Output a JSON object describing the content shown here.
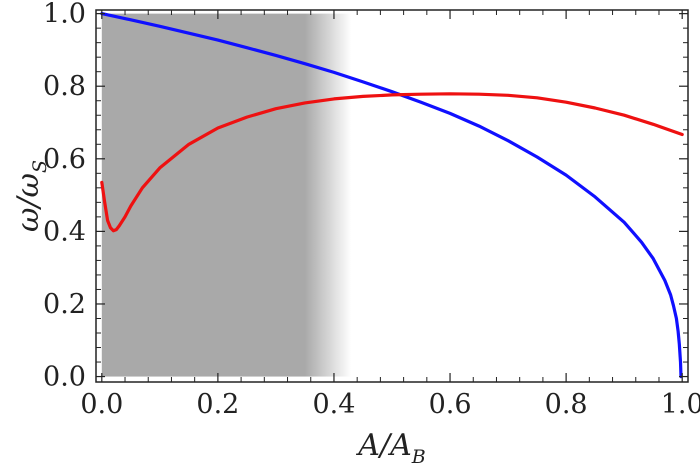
{
  "chart_data": {
    "type": "line",
    "xlabel": {
      "main": "A/A",
      "sub": "B"
    },
    "ylabel": {
      "main": "ω/ω",
      "sub": "S"
    },
    "xlim": [
      -0.01,
      1.01
    ],
    "ylim": [
      -0.015,
      1.01
    ],
    "xticks": [
      "0.0",
      "0.2",
      "0.4",
      "0.6",
      "0.8",
      "1.0"
    ],
    "yticks": [
      "0.0",
      "0.2",
      "0.4",
      "0.6",
      "0.8",
      "1.0"
    ],
    "shaded_region": {
      "x_solid_end": 0.35,
      "x_fade_end": 0.43,
      "color": "#a9a9a9"
    },
    "grid": false,
    "series": [
      {
        "color": "#1010ff",
        "points": [
          [
            0.0,
            1.0
          ],
          [
            0.05,
            0.983
          ],
          [
            0.1,
            0.965
          ],
          [
            0.15,
            0.946
          ],
          [
            0.2,
            0.927
          ],
          [
            0.25,
            0.906
          ],
          [
            0.3,
            0.885
          ],
          [
            0.35,
            0.862
          ],
          [
            0.4,
            0.838
          ],
          [
            0.45,
            0.812
          ],
          [
            0.5,
            0.785
          ],
          [
            0.55,
            0.756
          ],
          [
            0.6,
            0.725
          ],
          [
            0.65,
            0.69
          ],
          [
            0.7,
            0.65
          ],
          [
            0.75,
            0.605
          ],
          [
            0.8,
            0.555
          ],
          [
            0.85,
            0.495
          ],
          [
            0.9,
            0.425
          ],
          [
            0.93,
            0.37
          ],
          [
            0.95,
            0.325
          ],
          [
            0.97,
            0.265
          ],
          [
            0.98,
            0.225
          ],
          [
            0.985,
            0.195
          ],
          [
            0.99,
            0.16
          ],
          [
            0.993,
            0.125
          ],
          [
            0.995,
            0.09
          ],
          [
            0.997,
            0.04
          ],
          [
            0.998,
            0.0
          ]
        ]
      },
      {
        "color": "#ee1111",
        "points": [
          [
            0.0,
            0.535
          ],
          [
            0.005,
            0.48
          ],
          [
            0.01,
            0.43
          ],
          [
            0.015,
            0.41
          ],
          [
            0.02,
            0.402
          ],
          [
            0.025,
            0.405
          ],
          [
            0.03,
            0.415
          ],
          [
            0.04,
            0.44
          ],
          [
            0.05,
            0.47
          ],
          [
            0.07,
            0.52
          ],
          [
            0.1,
            0.575
          ],
          [
            0.15,
            0.64
          ],
          [
            0.2,
            0.685
          ],
          [
            0.25,
            0.715
          ],
          [
            0.3,
            0.738
          ],
          [
            0.35,
            0.754
          ],
          [
            0.4,
            0.765
          ],
          [
            0.45,
            0.772
          ],
          [
            0.5,
            0.776
          ],
          [
            0.55,
            0.778
          ],
          [
            0.6,
            0.779
          ],
          [
            0.65,
            0.778
          ],
          [
            0.7,
            0.775
          ],
          [
            0.75,
            0.768
          ],
          [
            0.8,
            0.756
          ],
          [
            0.85,
            0.74
          ],
          [
            0.9,
            0.72
          ],
          [
            0.95,
            0.695
          ],
          [
            1.0,
            0.667
          ]
        ]
      }
    ]
  }
}
